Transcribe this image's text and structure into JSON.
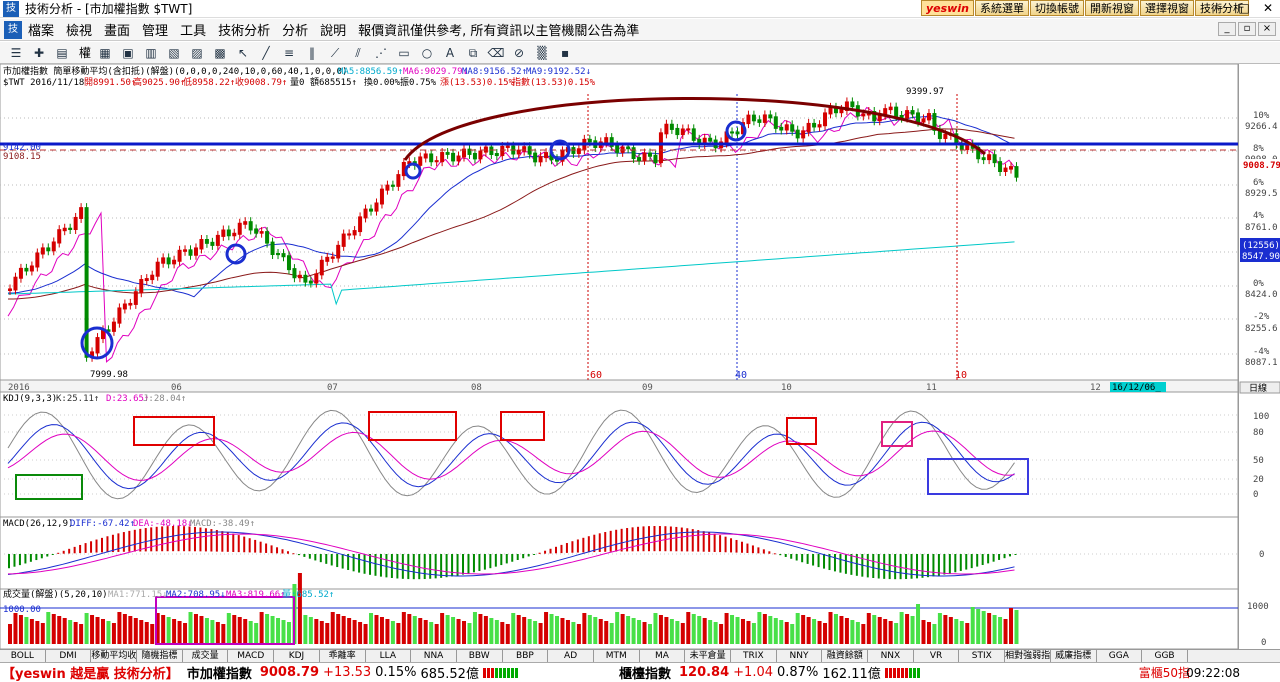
{
  "window": {
    "title": "技術分析 - [市加權指數 $TWT]",
    "buttons": [
      "yeswin",
      "系統選單",
      "切換帳號",
      "開新視窗",
      "選擇視窗",
      "技術分析"
    ],
    "controls": {
      "min": "–",
      "max": "□",
      "close": "✕"
    }
  },
  "menu": [
    "檔案",
    "檢視",
    "畫面",
    "管理",
    "工具",
    "技術分析",
    "分析",
    "說明",
    "報價資訊僅供參考, 所有資訊以主管機關公告為準"
  ],
  "toolbar": {
    "label": "權"
  },
  "price_panel": {
    "title": "市加權指數 簡單移動平均(含扣抵)(解盤)(0,0,0,0,240,10,0,60,40,1,0,0,0)",
    "ma_labels": [
      "MA5:8856.59↑",
      "MA6:9029.79↓",
      "MA8:9156.52↑",
      "MA9:9192.52↓"
    ],
    "ohlc_line": "$TWT 2016/11/18",
    "ohlc_parts": [
      "開8991.50↑",
      "高9025.90↑",
      "低8958.22↑",
      "收9008.79↑",
      "量0",
      "額685515↑",
      "換0.00%",
      "振0.75%",
      "漲(13.53)0.15%",
      "指數(13.53)0.15%"
    ],
    "hline_value": "9142.00",
    "hline_value2": "9108.15",
    "high_label": "9399.97",
    "low_label": "7999.98",
    "ticks": [
      "10%",
      "9266.4",
      "8%",
      "9098.0",
      "6%",
      "8929.5",
      "4%",
      "8761.0",
      "(12556)",
      "8547.90",
      "0%",
      "8424.0",
      "-2%",
      "8255.6",
      "-4%",
      "8087.1"
    ],
    "last_price": "9008.79",
    "vline_labels": [
      "60",
      "40",
      "10"
    ],
    "date_labels": [
      "2016",
      "06",
      "07",
      "08",
      "09",
      "10",
      "11",
      "12"
    ],
    "date_box": "16/12/06_",
    "period_button": "日線"
  },
  "kdj": {
    "title": "KDJ(9,3,3)",
    "k": "K:25.11↑",
    "d": "D:23.65↑",
    "j": "J:28.04↑",
    "ticks": [
      "100",
      "80",
      "50",
      "20",
      "0"
    ]
  },
  "macd": {
    "title": "MACD(26,12,9)",
    "diff": "DIFF:-67.42↑",
    "dea": "DEA:-48.18↓",
    "macd": "MACD:-38.49↑",
    "ticks": [
      "0"
    ]
  },
  "volume": {
    "title": "成交量(解盤)(5,20,10)",
    "ma1": "MA1:771.15↓",
    "ma2": "MA2:708.95↓",
    "ma3": "MA3:819.66↑",
    "vol": "量:685.52↑",
    "level": "1000.00",
    "ticks": [
      "1000",
      "0"
    ]
  },
  "tabs": [
    "BOLL",
    "DMI",
    "移動平均收簡單移動平",
    "隨機指標",
    "成交量",
    "MACD",
    "KDJ",
    "乖離率",
    "LLA",
    "NNA",
    "BBW",
    "BBP",
    "AD",
    "MTM",
    "MA",
    "未平倉量",
    "TRIX",
    "NNY",
    "融資餘額",
    "NNX",
    "VR",
    "STIX",
    "相對強弱指",
    "威廉指標",
    "GGA",
    "GGB"
  ],
  "status": {
    "brand": "【yeswin 越是贏 技術分析】",
    "index1_name": "市加權指數",
    "index1_price": "9008.79",
    "index1_change": "+13.53",
    "index1_pct": "0.15%",
    "index1_vol": "685.52億",
    "index2_name": "櫃檯指數",
    "index2_price": "120.84",
    "index2_change": "+1.04",
    "index2_pct": "0.87%",
    "index2_vol": "162.11億",
    "ticker": "富櫃50指",
    "time": "09:22:08"
  },
  "colors": {
    "up": "#d40000",
    "down": "#008a00",
    "ma_short": "#e000c0",
    "ma_mid": "#1a2ed0",
    "ma_long": "#8a1a1a",
    "ma_cyan": "#00c8c8",
    "hline": "#0a18c8",
    "arc": "#7a0000"
  }
}
